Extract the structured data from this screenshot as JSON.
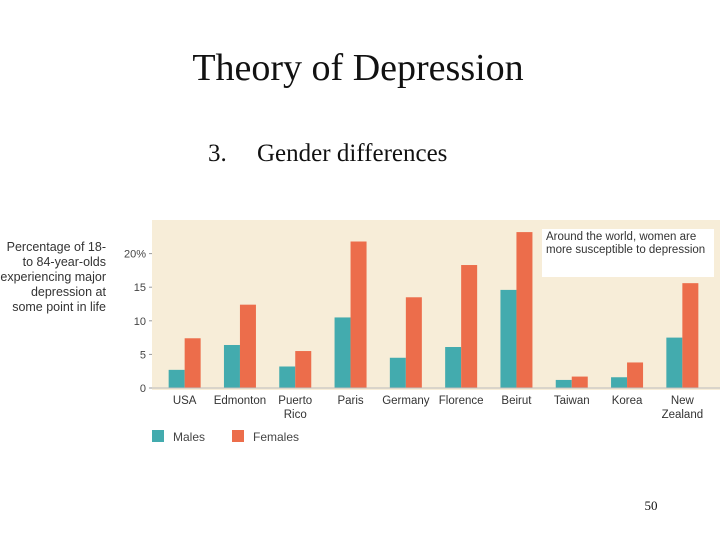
{
  "title": "Theory of Depression",
  "subtitle": {
    "number": "3.",
    "text": "Gender differences"
  },
  "page_number": "50",
  "chart_data": {
    "type": "bar",
    "y_label": "Percentage of 18- to 84-year-olds experiencing major depression at some point in life",
    "annotation": "Around the world, women are more susceptible to depression",
    "categories": [
      "USA",
      "Edmonton",
      "Puerto Rico",
      "Paris",
      "Germany",
      "Florence",
      "Beirut",
      "Taiwan",
      "Korea",
      "New Zealand"
    ],
    "series": [
      {
        "name": "Males",
        "color": "#43abae",
        "values": [
          2.7,
          6.4,
          3.2,
          10.5,
          4.5,
          6.1,
          14.6,
          1.2,
          1.6,
          7.5
        ]
      },
      {
        "name": "Females",
        "color": "#ec6d4b",
        "values": [
          7.4,
          12.4,
          5.5,
          21.8,
          13.5,
          18.3,
          23.2,
          1.7,
          3.8,
          15.6
        ]
      }
    ],
    "ylim": [
      0,
      25
    ],
    "yticks": [
      0,
      5,
      10,
      15,
      {
        "value": 20,
        "label": "20%"
      }
    ],
    "grid": false
  }
}
